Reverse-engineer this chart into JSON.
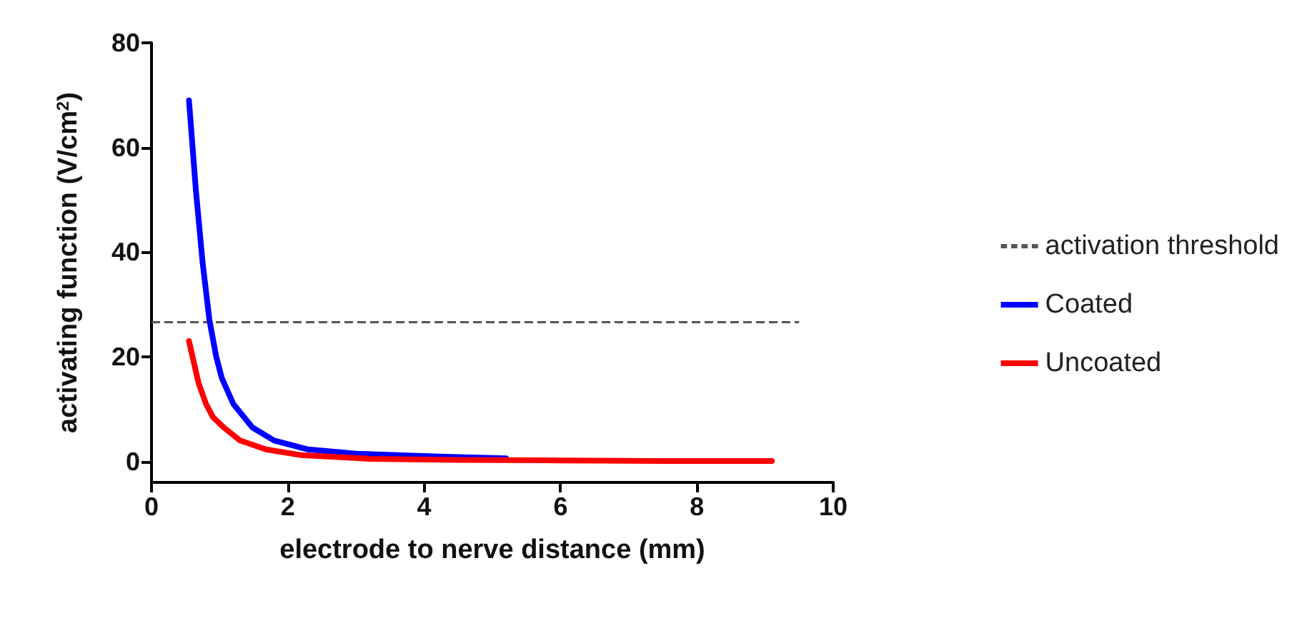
{
  "chart_data": {
    "type": "line",
    "xlabel": "electrode to nerve distance (mm)",
    "ylabel": "activating function (V/cm$^{2}$)",
    "xlim": [
      0,
      10
    ],
    "xticks": [
      0,
      2,
      4,
      6,
      8,
      10
    ],
    "ylim": [
      -4,
      80
    ],
    "yticks": [
      0,
      20,
      40,
      60,
      80
    ],
    "grid": false,
    "legend": "right",
    "marker": "none",
    "line_style": "solid",
    "ref_lines": [
      {
        "axis": "y",
        "value": 26.6,
        "label": "activation threshold",
        "color": "#555555",
        "line_style": "dashed"
      }
    ],
    "series": [
      {
        "name": "Coated",
        "color": "#0000ff",
        "x": [
          0.55,
          0.65,
          0.75,
          0.85,
          0.95,
          1.03,
          1.2,
          1.48,
          1.8,
          2.3,
          3,
          3.6,
          4.3,
          5.2
        ],
        "values": [
          69,
          52,
          38,
          27,
          20,
          16,
          11,
          6.5,
          4,
          2.3,
          1.5,
          1.2,
          0.9,
          0.6
        ]
      },
      {
        "name": "Uncoated",
        "color": "#ff0000",
        "x": [
          0.55,
          0.62,
          0.69,
          0.8,
          0.9,
          1.06,
          1.3,
          1.68,
          2.2,
          3.2,
          4.5,
          6,
          7.5,
          9.1
        ],
        "values": [
          23,
          19,
          15,
          11,
          8.5,
          6.5,
          4,
          2.3,
          1.2,
          0.5,
          0.3,
          0.2,
          0.1,
          0.1
        ]
      }
    ]
  }
}
